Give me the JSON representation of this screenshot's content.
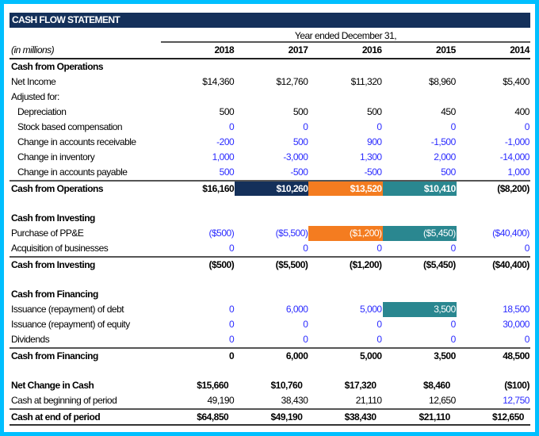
{
  "title": "CASH FLOW STATEMENT",
  "period_header": "Year ended December 31,",
  "units_label": "(in millions)",
  "years": [
    "2018",
    "2017",
    "2016",
    "2015",
    "2014"
  ],
  "colors": {
    "border": "#00bfff",
    "title_bg": "#14305a",
    "navy": "#14305a",
    "orange": "#f47c20",
    "teal": "#2a8790",
    "input": "#2b2bff"
  },
  "rows": [
    {
      "label": "Cash from Operations",
      "kind": "section"
    },
    {
      "label": "Net Income",
      "kind": "normal",
      "values": [
        "$14,360",
        "$12,760",
        "$11,320",
        "$8,960",
        "$5,400"
      ]
    },
    {
      "label": "Adjusted for:",
      "kind": "normal"
    },
    {
      "label": "Depreciation",
      "kind": "indent",
      "values": [
        "500",
        "500",
        "500",
        "450",
        "400"
      ]
    },
    {
      "label": "Stock based compensation",
      "kind": "indent",
      "values": [
        "0",
        "0",
        "0",
        "0",
        "0"
      ],
      "input": [
        1,
        1,
        1,
        1,
        1
      ]
    },
    {
      "label": "Change in accounts receivable",
      "kind": "indent",
      "values": [
        "-200",
        "500",
        "900",
        "-1,500",
        "-1,000"
      ],
      "input": [
        1,
        1,
        1,
        1,
        1
      ]
    },
    {
      "label": "Change in inventory",
      "kind": "indent",
      "values": [
        "1,000",
        "-3,000",
        "1,300",
        "2,000",
        "-14,000"
      ],
      "input": [
        1,
        1,
        1,
        1,
        1
      ]
    },
    {
      "label": "Change in accounts payable",
      "kind": "indent",
      "values": [
        "500",
        "-500",
        "-500",
        "500",
        "1,000"
      ],
      "input": [
        1,
        1,
        1,
        1,
        1
      ]
    },
    {
      "label": "Cash from Operations",
      "kind": "total",
      "values": [
        "$16,160",
        "$10,260",
        "$13,520",
        "$10,410",
        "($8,200)"
      ],
      "fill": [
        null,
        "navy",
        "orange",
        "teal",
        null
      ]
    },
    {
      "label": "",
      "kind": "blank"
    },
    {
      "label": "Cash from Investing",
      "kind": "section"
    },
    {
      "label": "Purchase of PP&E",
      "kind": "normal",
      "values": [
        "($500)",
        "($5,500)",
        "($1,200)",
        "($5,450)",
        "($40,400)"
      ],
      "input": [
        1,
        1,
        1,
        1,
        1
      ],
      "fill": [
        null,
        null,
        "orange",
        "teal",
        null
      ]
    },
    {
      "label": "Acquisition of businesses",
      "kind": "normal",
      "values": [
        "0",
        "0",
        "0",
        "0",
        "0"
      ],
      "input": [
        1,
        1,
        1,
        1,
        1
      ]
    },
    {
      "label": "Cash from Investing",
      "kind": "total",
      "values": [
        "($500)",
        "($5,500)",
        "($1,200)",
        "($5,450)",
        "($40,400)"
      ]
    },
    {
      "label": "",
      "kind": "blank"
    },
    {
      "label": "Cash from Financing",
      "kind": "section"
    },
    {
      "label": "Issuance (repayment) of debt",
      "kind": "normal",
      "values": [
        "0",
        "6,000",
        "5,000",
        "3,500",
        "18,500"
      ],
      "input": [
        1,
        1,
        1,
        1,
        1
      ],
      "fill": [
        null,
        null,
        null,
        "teal",
        null
      ]
    },
    {
      "label": "Issuance (repayment) of equity",
      "kind": "normal",
      "values": [
        "0",
        "0",
        "0",
        "0",
        "30,000"
      ],
      "input": [
        1,
        1,
        1,
        1,
        1
      ]
    },
    {
      "label": "Dividends",
      "kind": "normal",
      "values": [
        "0",
        "0",
        "0",
        "0",
        "0"
      ],
      "input": [
        1,
        1,
        1,
        1,
        1
      ]
    },
    {
      "label": "Cash from Financing",
      "kind": "total",
      "values": [
        "0",
        "6,000",
        "5,000",
        "3,500",
        "48,500"
      ]
    },
    {
      "label": "",
      "kind": "blank"
    },
    {
      "label": "Net Change in Cash",
      "kind": "section-acct",
      "values": [
        "$15,660",
        "$10,760",
        "$17,320",
        "$8,460",
        "($100)"
      ]
    },
    {
      "label": "Cash at beginning of period",
      "kind": "acct",
      "values": [
        "49,190",
        "38,430",
        "21,110",
        "12,650",
        "12,750"
      ],
      "input": [
        0,
        0,
        0,
        0,
        1
      ]
    },
    {
      "label": "Cash at end of period",
      "kind": "total-acct-end",
      "values": [
        "$64,850",
        "$49,190",
        "$38,430",
        "$21,110",
        "$12,650"
      ]
    }
  ]
}
